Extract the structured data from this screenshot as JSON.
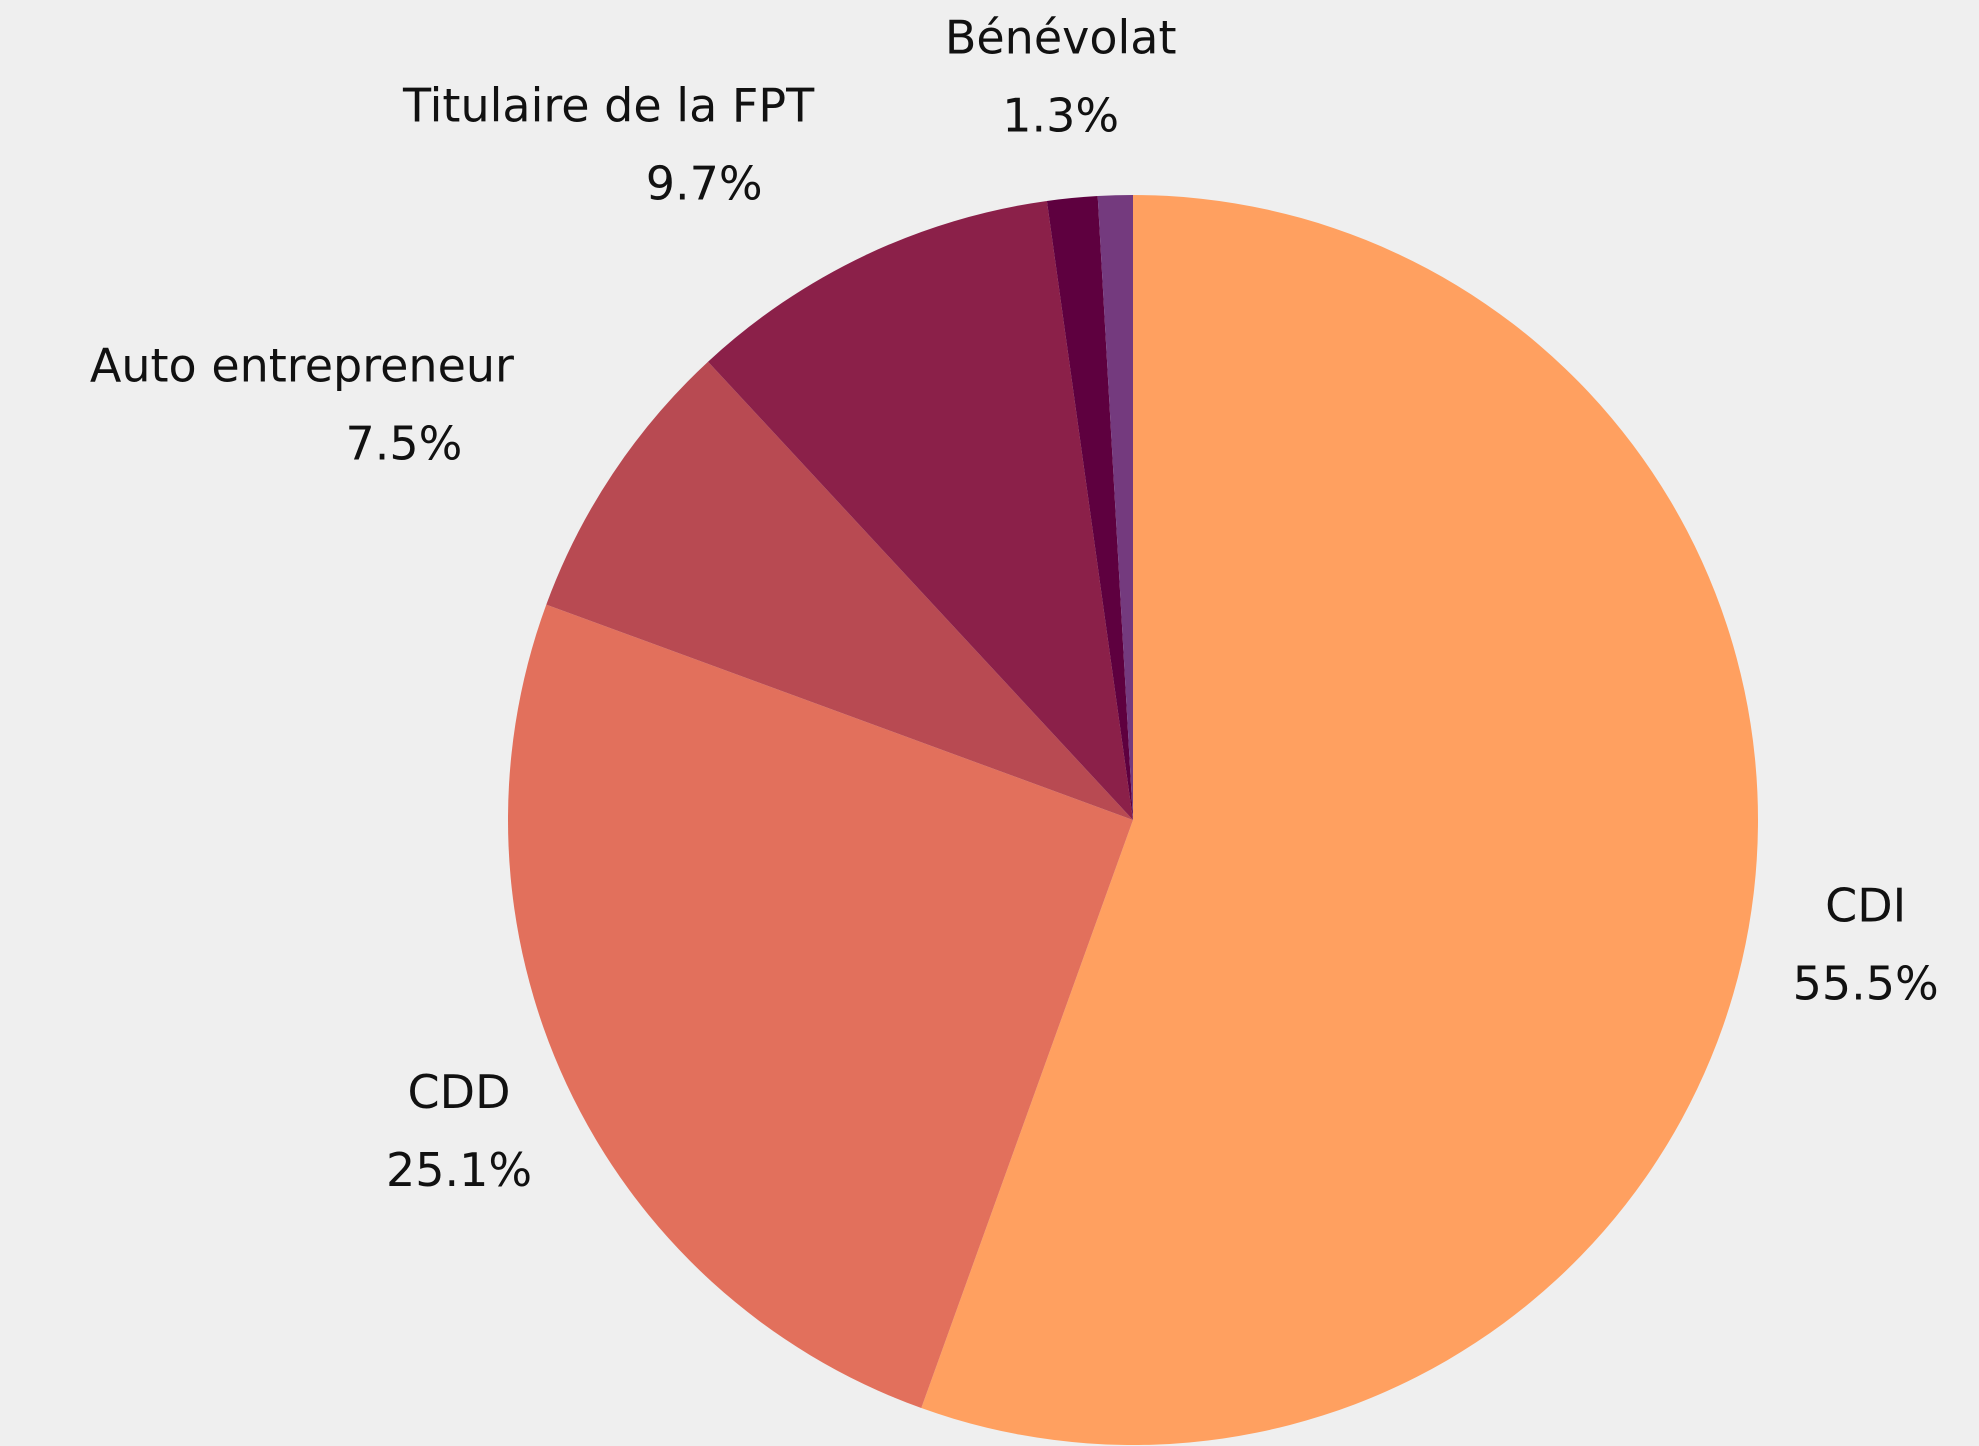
{
  "chart_data": {
    "type": "pie",
    "categories": [
      "CDI",
      "CDD",
      "Auto entrepreneur",
      "Titulaire de la FPT",
      "Bénévolat",
      null
    ],
    "values": [
      55.5,
      25.1,
      7.5,
      9.7,
      1.3,
      0.9
    ],
    "value_labels": [
      "55.5%",
      "25.1%",
      "7.5%",
      "9.7%",
      "1.3%",
      null
    ],
    "colors": [
      "#ffa060",
      "#e2705c",
      "#b84a52",
      "#8b2049",
      "#5e003f",
      "#743a7e"
    ]
  }
}
